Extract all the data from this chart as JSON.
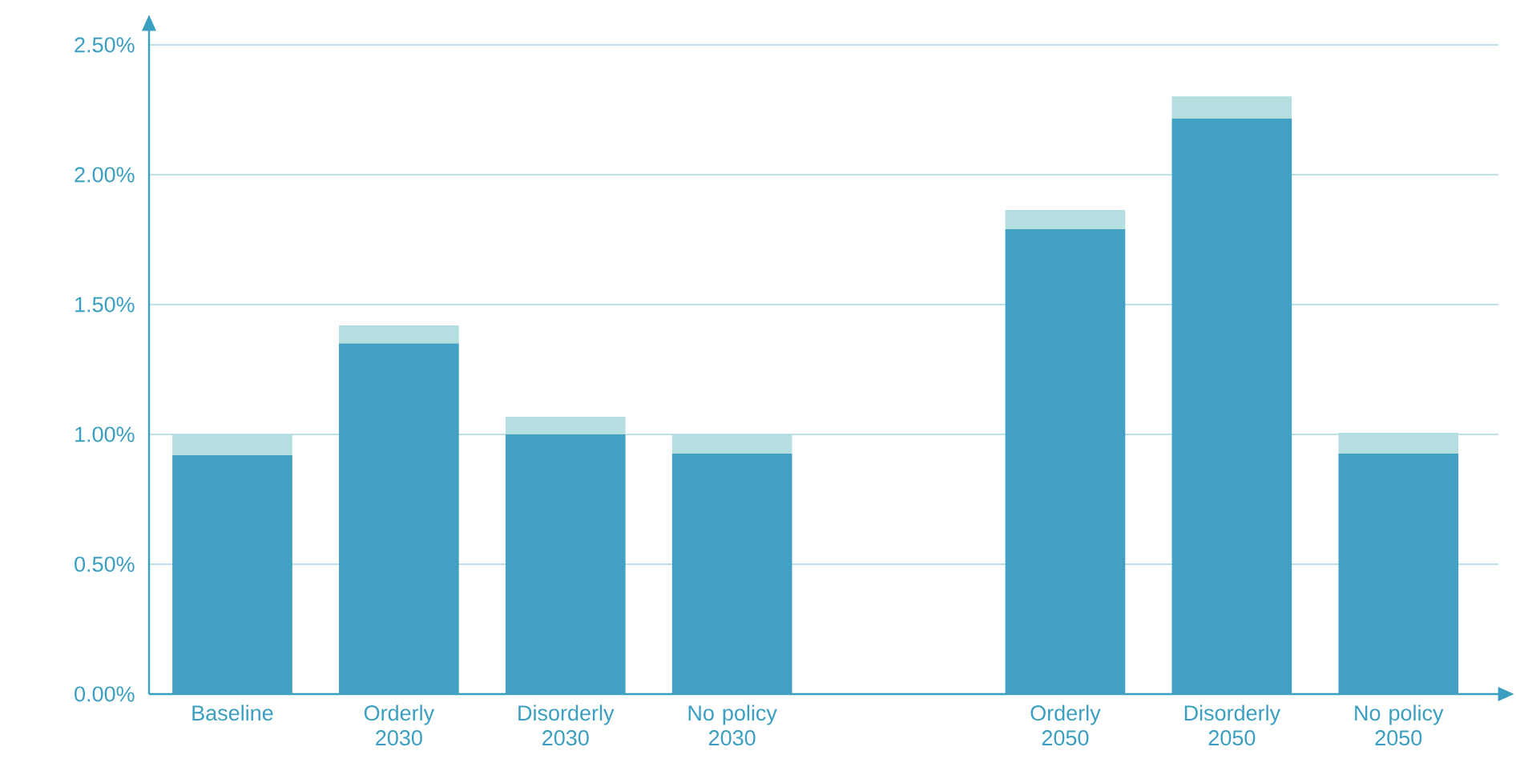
{
  "chart_data": {
    "type": "bar",
    "stacked": true,
    "categories": [
      "Baseline",
      "Orderly 2030",
      "Disorderly 2030",
      "No policy 2030",
      null,
      "Orderly 2050",
      "Disorderly 2050",
      "No policy 2050"
    ],
    "series": [
      {
        "color": "#42a1c3",
        "values": [
          0.92,
          1.35,
          1.0,
          0.926,
          null,
          1.79,
          2.216,
          0.926
        ]
      },
      {
        "color": "#b4dee0",
        "values": [
          0.08,
          0.07,
          0.068,
          0.074,
          null,
          0.074,
          0.086,
          0.08
        ]
      }
    ],
    "ylim": [
      0,
      2.5
    ],
    "yticks": [
      {
        "value": 0,
        "label": "0.00%"
      },
      {
        "value": 0.5,
        "label": "0.50%"
      },
      {
        "value": 1,
        "label": "1.00%"
      },
      {
        "value": 1.5,
        "label": "1.50%"
      },
      {
        "value": 2,
        "label": "2.00%"
      },
      {
        "value": 2.5,
        "label": "2.50%"
      }
    ],
    "grid": "y"
  }
}
